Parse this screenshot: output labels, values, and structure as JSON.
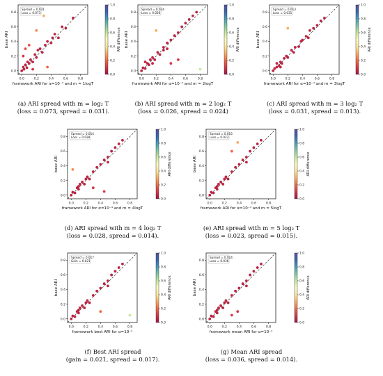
{
  "colorbar": {
    "label": "ARI difference",
    "ticks": [
      "0.0",
      "0.2",
      "0.4",
      "0.6",
      "0.8",
      "1.0"
    ]
  },
  "colors": {
    "cmap": [
      "#a3123c",
      "#d5374a",
      "#ee6b45",
      "#f9ae63",
      "#fde69a",
      "#fbf9c1",
      "#c7e89c",
      "#7fc7a4",
      "#4a9bb8",
      "#3a67ae",
      "#5a4fa1"
    ]
  },
  "axis_ticks": [
    "0.0",
    "0.2",
    "0.4",
    "0.6",
    "0.8"
  ],
  "panels": [
    {
      "id": "a",
      "ylabel": "base ARI",
      "xlabel": "framework ARI for α=10⁻⁴ and m = 1logT",
      "legend": [
        "Spread = 0.031",
        "Loss = 0.073"
      ],
      "caption_line1": "(a) ARI spread with m = log₂ T",
      "caption_line2": "(loss = 0.073, spread = 0.031)."
    },
    {
      "id": "b",
      "ylabel": "base ARI",
      "xlabel": "framework ARI for α=10⁻⁴ and m = 2logT",
      "legend": [
        "Spread = 0.024",
        "Loss = 0.026"
      ],
      "caption_line1": "(b) ARI spread with m = 2 log₂ T",
      "caption_line2": "(loss = 0.026, spread = 0.024)"
    },
    {
      "id": "c",
      "ylabel": "base ARI",
      "xlabel": "framework ARI for α=10⁻⁴ and m = 3logT",
      "legend": [
        "Spread = 0.013",
        "Loss = 0.031"
      ],
      "caption_line1": "(c) ARI spread with m = 3 log₂ T",
      "caption_line2": "(loss = 0.031, spread = 0.013)."
    },
    {
      "id": "d",
      "ylabel": "base ARI",
      "xlabel": "framework ARI for α=10⁻⁴ and m = 4logT",
      "legend": [
        "Spread = 0.014",
        "Loss = 0.028"
      ],
      "caption_line1": "(d) ARI spread with m = 4 log₂ T",
      "caption_line2": "(loss = 0.028, spread = 0.014)."
    },
    {
      "id": "e",
      "ylabel": "base ARI",
      "xlabel": "framework ARI for α=10⁻⁴ and m = 5logT",
      "legend": [
        "Spread = 0.015",
        "Loss = 0.023"
      ],
      "caption_line1": "(e) ARI spread with m = 5 log₂ T",
      "caption_line2": "(loss = 0.023, spread = 0.015)."
    },
    {
      "id": "f",
      "ylabel": "base ARI",
      "xlabel": "framework best ARI for α=10⁻⁴",
      "legend": [
        "Spread = 0.017",
        "Gain = 0.021"
      ],
      "caption_line1": "(f) Best ARI spread",
      "caption_line2": "(gain = 0.021, spread = 0.017)."
    },
    {
      "id": "g",
      "ylabel": "base ARI",
      "xlabel": "framework mean ARI for α=10⁻⁴",
      "legend": [
        "Spread = 0.014",
        "Loss = 0.036"
      ],
      "caption_line1": "(g) Mean ARI spread",
      "caption_line2": "(loss = 0.036, spread = 0.014)."
    }
  ],
  "chart_data": [
    {
      "type": "scatter",
      "panel": "a",
      "xlim": [
        -0.05,
        0.9
      ],
      "ylim": [
        -0.05,
        0.9
      ],
      "color_scale": [
        0,
        1
      ],
      "reference_line": "y = x",
      "points": [
        [
          0.0,
          0.0,
          0.05
        ],
        [
          0.02,
          0.05,
          0.05
        ],
        [
          0.03,
          0.02,
          0.05
        ],
        [
          0.05,
          0.08,
          0.05
        ],
        [
          0.07,
          0.04,
          0.05
        ],
        [
          0.1,
          0.1,
          0.05
        ],
        [
          0.12,
          0.15,
          0.05
        ],
        [
          0.15,
          0.12,
          0.05
        ],
        [
          0.18,
          0.22,
          0.05
        ],
        [
          0.2,
          0.18,
          0.05
        ],
        [
          0.25,
          0.3,
          0.05
        ],
        [
          0.28,
          0.25,
          0.05
        ],
        [
          0.32,
          0.35,
          0.05
        ],
        [
          0.35,
          0.4,
          0.05
        ],
        [
          0.4,
          0.38,
          0.05
        ],
        [
          0.45,
          0.5,
          0.05
        ],
        [
          0.5,
          0.45,
          0.05
        ],
        [
          0.55,
          0.6,
          0.05
        ],
        [
          0.6,
          0.58,
          0.05
        ],
        [
          0.7,
          0.72,
          0.05
        ],
        [
          0.05,
          0.3,
          0.15
        ],
        [
          0.1,
          0.35,
          0.15
        ],
        [
          0.2,
          0.55,
          0.25
        ],
        [
          0.3,
          0.75,
          0.3
        ],
        [
          0.35,
          0.05,
          0.2
        ],
        [
          0.15,
          0.02,
          0.1
        ],
        [
          0.02,
          0.2,
          0.1
        ],
        [
          0.08,
          0.12,
          0.05
        ],
        [
          0.22,
          0.28,
          0.05
        ],
        [
          0.42,
          0.45,
          0.05
        ]
      ]
    },
    {
      "type": "scatter",
      "panel": "b",
      "xlim": [
        -0.05,
        0.9
      ],
      "ylim": [
        -0.05,
        0.9
      ],
      "color_scale": [
        0,
        1
      ],
      "reference_line": "y = x",
      "points": [
        [
          0.0,
          0.0,
          0.05
        ],
        [
          0.02,
          0.04,
          0.05
        ],
        [
          0.05,
          0.03,
          0.05
        ],
        [
          0.08,
          0.1,
          0.05
        ],
        [
          0.1,
          0.08,
          0.05
        ],
        [
          0.12,
          0.15,
          0.05
        ],
        [
          0.15,
          0.18,
          0.05
        ],
        [
          0.18,
          0.15,
          0.05
        ],
        [
          0.22,
          0.25,
          0.05
        ],
        [
          0.25,
          0.22,
          0.05
        ],
        [
          0.3,
          0.32,
          0.05
        ],
        [
          0.35,
          0.38,
          0.05
        ],
        [
          0.4,
          0.42,
          0.05
        ],
        [
          0.45,
          0.48,
          0.05
        ],
        [
          0.5,
          0.52,
          0.05
        ],
        [
          0.55,
          0.6,
          0.05
        ],
        [
          0.6,
          0.65,
          0.05
        ],
        [
          0.65,
          0.7,
          0.05
        ],
        [
          0.7,
          0.75,
          0.05
        ],
        [
          0.75,
          0.8,
          0.05
        ],
        [
          0.2,
          0.55,
          0.3
        ],
        [
          0.8,
          0.02,
          0.6
        ],
        [
          0.4,
          0.1,
          0.1
        ],
        [
          0.5,
          0.15,
          0.1
        ],
        [
          0.3,
          0.28,
          0.05
        ],
        [
          0.05,
          0.12,
          0.05
        ],
        [
          0.15,
          0.1,
          0.05
        ],
        [
          0.35,
          0.3,
          0.05
        ]
      ]
    },
    {
      "type": "scatter",
      "panel": "c",
      "xlim": [
        -0.05,
        0.9
      ],
      "ylim": [
        -0.05,
        0.9
      ],
      "color_scale": [
        0,
        1
      ],
      "reference_line": "y = x",
      "points": [
        [
          0.0,
          0.0,
          0.05
        ],
        [
          0.02,
          0.03,
          0.05
        ],
        [
          0.05,
          0.05,
          0.05
        ],
        [
          0.08,
          0.07,
          0.05
        ],
        [
          0.1,
          0.12,
          0.05
        ],
        [
          0.12,
          0.1,
          0.05
        ],
        [
          0.15,
          0.17,
          0.05
        ],
        [
          0.18,
          0.2,
          0.05
        ],
        [
          0.2,
          0.18,
          0.05
        ],
        [
          0.25,
          0.28,
          0.05
        ],
        [
          0.3,
          0.32,
          0.05
        ],
        [
          0.35,
          0.33,
          0.05
        ],
        [
          0.4,
          0.42,
          0.05
        ],
        [
          0.45,
          0.47,
          0.05
        ],
        [
          0.5,
          0.55,
          0.05
        ],
        [
          0.55,
          0.58,
          0.05
        ],
        [
          0.6,
          0.62,
          0.05
        ],
        [
          0.65,
          0.68,
          0.05
        ],
        [
          0.7,
          0.72,
          0.05
        ],
        [
          0.2,
          0.58,
          0.3
        ],
        [
          0.05,
          0.1,
          0.05
        ],
        [
          0.1,
          0.05,
          0.05
        ],
        [
          0.28,
          0.25,
          0.05
        ],
        [
          0.38,
          0.4,
          0.05
        ],
        [
          0.48,
          0.45,
          0.05
        ]
      ]
    },
    {
      "type": "scatter",
      "panel": "d",
      "xlim": [
        -0.05,
        0.9
      ],
      "ylim": [
        -0.05,
        0.9
      ],
      "color_scale": [
        0,
        1
      ],
      "reference_line": "y = x",
      "points": [
        [
          0.0,
          0.0,
          0.05
        ],
        [
          0.02,
          0.04,
          0.05
        ],
        [
          0.05,
          0.03,
          0.05
        ],
        [
          0.08,
          0.1,
          0.05
        ],
        [
          0.1,
          0.08,
          0.05
        ],
        [
          0.12,
          0.15,
          0.05
        ],
        [
          0.15,
          0.18,
          0.05
        ],
        [
          0.18,
          0.15,
          0.05
        ],
        [
          0.22,
          0.25,
          0.05
        ],
        [
          0.25,
          0.22,
          0.05
        ],
        [
          0.3,
          0.32,
          0.05
        ],
        [
          0.35,
          0.38,
          0.05
        ],
        [
          0.4,
          0.42,
          0.05
        ],
        [
          0.45,
          0.48,
          0.05
        ],
        [
          0.5,
          0.52,
          0.05
        ],
        [
          0.55,
          0.6,
          0.05
        ],
        [
          0.6,
          0.65,
          0.05
        ],
        [
          0.65,
          0.7,
          0.05
        ],
        [
          0.7,
          0.75,
          0.05
        ],
        [
          0.02,
          0.35,
          0.25
        ],
        [
          0.3,
          0.1,
          0.1
        ],
        [
          0.45,
          0.05,
          0.1
        ],
        [
          0.1,
          0.12,
          0.05
        ],
        [
          0.2,
          0.22,
          0.05
        ],
        [
          0.5,
          0.45,
          0.05
        ]
      ]
    },
    {
      "type": "scatter",
      "panel": "e",
      "xlim": [
        -0.05,
        0.9
      ],
      "ylim": [
        -0.05,
        0.9
      ],
      "color_scale": [
        0,
        1
      ],
      "reference_line": "y = x",
      "points": [
        [
          0.0,
          0.0,
          0.05
        ],
        [
          0.02,
          0.04,
          0.05
        ],
        [
          0.05,
          0.03,
          0.05
        ],
        [
          0.08,
          0.1,
          0.05
        ],
        [
          0.1,
          0.08,
          0.05
        ],
        [
          0.12,
          0.15,
          0.05
        ],
        [
          0.15,
          0.18,
          0.05
        ],
        [
          0.18,
          0.15,
          0.05
        ],
        [
          0.22,
          0.25,
          0.05
        ],
        [
          0.25,
          0.22,
          0.05
        ],
        [
          0.3,
          0.32,
          0.05
        ],
        [
          0.35,
          0.38,
          0.05
        ],
        [
          0.4,
          0.42,
          0.05
        ],
        [
          0.45,
          0.48,
          0.05
        ],
        [
          0.5,
          0.52,
          0.05
        ],
        [
          0.55,
          0.6,
          0.05
        ],
        [
          0.6,
          0.65,
          0.05
        ],
        [
          0.65,
          0.7,
          0.05
        ],
        [
          0.7,
          0.75,
          0.05
        ],
        [
          0.38,
          0.72,
          0.3
        ],
        [
          0.3,
          0.6,
          0.2
        ],
        [
          0.1,
          0.12,
          0.05
        ],
        [
          0.2,
          0.22,
          0.05
        ],
        [
          0.5,
          0.45,
          0.05
        ]
      ]
    },
    {
      "type": "scatter",
      "panel": "f",
      "xlim": [
        -0.05,
        0.9
      ],
      "ylim": [
        -0.05,
        0.9
      ],
      "color_scale": [
        0,
        1
      ],
      "reference_line": "y = x",
      "points": [
        [
          0.0,
          0.0,
          0.05
        ],
        [
          0.02,
          0.04,
          0.05
        ],
        [
          0.05,
          0.03,
          0.05
        ],
        [
          0.08,
          0.1,
          0.05
        ],
        [
          0.1,
          0.08,
          0.05
        ],
        [
          0.12,
          0.15,
          0.05
        ],
        [
          0.15,
          0.18,
          0.05
        ],
        [
          0.18,
          0.15,
          0.05
        ],
        [
          0.22,
          0.25,
          0.05
        ],
        [
          0.25,
          0.22,
          0.05
        ],
        [
          0.3,
          0.32,
          0.05
        ],
        [
          0.35,
          0.38,
          0.05
        ],
        [
          0.4,
          0.42,
          0.05
        ],
        [
          0.45,
          0.48,
          0.05
        ],
        [
          0.5,
          0.52,
          0.05
        ],
        [
          0.55,
          0.6,
          0.05
        ],
        [
          0.6,
          0.65,
          0.05
        ],
        [
          0.65,
          0.7,
          0.05
        ],
        [
          0.7,
          0.75,
          0.05
        ],
        [
          0.8,
          0.05,
          0.6
        ],
        [
          0.4,
          0.1,
          0.2
        ],
        [
          0.1,
          0.12,
          0.05
        ],
        [
          0.2,
          0.22,
          0.05
        ],
        [
          0.5,
          0.45,
          0.05
        ]
      ]
    },
    {
      "type": "scatter",
      "panel": "g",
      "xlim": [
        -0.05,
        0.9
      ],
      "ylim": [
        -0.05,
        0.9
      ],
      "color_scale": [
        0,
        1
      ],
      "reference_line": "y = x",
      "points": [
        [
          0.0,
          0.0,
          0.05
        ],
        [
          0.02,
          0.04,
          0.05
        ],
        [
          0.05,
          0.03,
          0.05
        ],
        [
          0.08,
          0.1,
          0.05
        ],
        [
          0.1,
          0.08,
          0.05
        ],
        [
          0.12,
          0.15,
          0.05
        ],
        [
          0.15,
          0.18,
          0.05
        ],
        [
          0.18,
          0.15,
          0.05
        ],
        [
          0.22,
          0.25,
          0.05
        ],
        [
          0.25,
          0.22,
          0.05
        ],
        [
          0.3,
          0.32,
          0.05
        ],
        [
          0.35,
          0.38,
          0.05
        ],
        [
          0.4,
          0.42,
          0.05
        ],
        [
          0.45,
          0.48,
          0.05
        ],
        [
          0.5,
          0.52,
          0.05
        ],
        [
          0.55,
          0.6,
          0.05
        ],
        [
          0.6,
          0.65,
          0.05
        ],
        [
          0.65,
          0.7,
          0.05
        ],
        [
          0.7,
          0.75,
          0.05
        ],
        [
          0.38,
          0.1,
          0.1
        ],
        [
          0.3,
          0.05,
          0.1
        ],
        [
          0.1,
          0.12,
          0.05
        ],
        [
          0.2,
          0.22,
          0.05
        ],
        [
          0.5,
          0.45,
          0.05
        ]
      ]
    }
  ]
}
